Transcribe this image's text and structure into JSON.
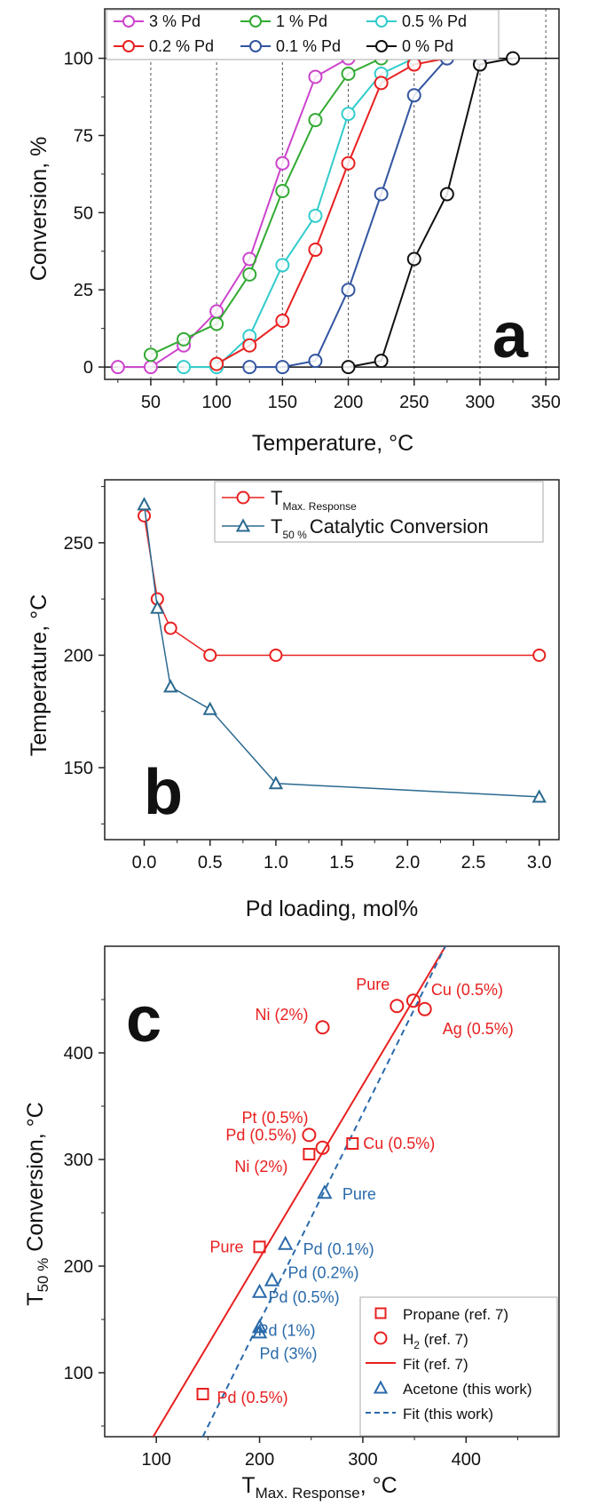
{
  "chart_data": [
    {
      "panel": "a",
      "type": "line",
      "xlabel": "Temperature, °C",
      "ylabel": "Conversion, %",
      "xlim": [
        15,
        360
      ],
      "ylim": [
        -4,
        116
      ],
      "xticks": [
        50,
        100,
        150,
        200,
        250,
        300,
        350
      ],
      "yticks": [
        0,
        25,
        50,
        75,
        100
      ],
      "grid": "vertical dashed",
      "legend_position": "top",
      "series": [
        {
          "name": "3 % Pd",
          "color": "#cc44cc",
          "x": [
            25,
            50,
            75,
            100,
            125,
            150,
            175,
            200
          ],
          "y": [
            0,
            0,
            7,
            18,
            35,
            66,
            94,
            100
          ]
        },
        {
          "name": "1 % Pd",
          "color": "#33aa33",
          "x": [
            50,
            75,
            100,
            125,
            150,
            175,
            200,
            225,
            250
          ],
          "y": [
            4,
            9,
            14,
            30,
            57,
            80,
            95,
            100,
            100
          ]
        },
        {
          "name": "0.5 % Pd",
          "color": "#33cccc",
          "x": [
            75,
            100,
            125,
            150,
            175,
            200,
            225,
            250
          ],
          "y": [
            0,
            0,
            10,
            33,
            49,
            82,
            95,
            100
          ]
        },
        {
          "name": "0.2 % Pd",
          "color": "#e82020",
          "x": [
            100,
            125,
            150,
            175,
            200,
            225,
            250,
            275
          ],
          "y": [
            1,
            7,
            15,
            38,
            66,
            92,
            98,
            100
          ]
        },
        {
          "name": "0.1 % Pd",
          "color": "#3355a0",
          "x": [
            125,
            150,
            175,
            200,
            225,
            250,
            275,
            300
          ],
          "y": [
            0,
            0,
            2,
            25,
            56,
            88,
            100,
            100
          ]
        },
        {
          "name": "0 % Pd",
          "color": "#111111",
          "x": [
            200,
            225,
            250,
            275,
            300,
            325
          ],
          "y": [
            0,
            2,
            35,
            56,
            98,
            100
          ]
        }
      ]
    },
    {
      "panel": "b",
      "type": "line",
      "xlabel": "Pd loading, mol%",
      "ylabel": "Temperature, °C",
      "xlim": [
        -0.3,
        3.15
      ],
      "ylim": [
        118,
        278
      ],
      "xticks": [
        0.0,
        0.5,
        1.0,
        1.5,
        2.0,
        2.5,
        3.0
      ],
      "yticks": [
        150,
        200,
        250
      ],
      "legend_position": "top-right",
      "series": [
        {
          "name": "T",
          "name_sub": "Max. Response",
          "name_suffix": "",
          "color": "#e82020",
          "marker": "circle",
          "x": [
            0,
            0.1,
            0.2,
            0.5,
            1.0,
            3.0
          ],
          "y": [
            262,
            225,
            212,
            200,
            200,
            200
          ]
        },
        {
          "name": "T",
          "name_sub": "50 %",
          "name_suffix": "Catalytic Conversion",
          "color": "#2a6a8f",
          "marker": "triangle",
          "x": [
            0,
            0.1,
            0.2,
            0.5,
            1.0,
            3.0
          ],
          "y": [
            267,
            221,
            186,
            176,
            143,
            137
          ]
        }
      ]
    },
    {
      "panel": "c",
      "type": "scatter",
      "xlabel": "T",
      "xlabel_sub": "Max. Response",
      "xlabel_suffix": ", °C",
      "ylabel": "T",
      "ylabel_sub": "50 %",
      "ylabel_suffix": " Conversion, °C",
      "xlim": [
        50,
        490
      ],
      "ylim": [
        40,
        500
      ],
      "xticks": [
        100,
        200,
        300,
        400
      ],
      "yticks": [
        100,
        200,
        300,
        400
      ],
      "legend_position": "bottom-right",
      "legend": [
        {
          "label": "Propane (ref. 7)",
          "sub": "",
          "suffix": "",
          "kind": "square",
          "color": "#e82020"
        },
        {
          "label": "H",
          "sub": "2",
          "suffix": " (ref. 7)",
          "kind": "circle",
          "color": "#e82020"
        },
        {
          "label": "Fit (ref. 7)",
          "sub": "",
          "suffix": "",
          "kind": "solid-line",
          "color": "#e82020"
        },
        {
          "label": "Acetone (this work)",
          "sub": "",
          "suffix": "",
          "kind": "triangle",
          "color": "#2a6aaa"
        },
        {
          "label": "Fit (this work)",
          "sub": "",
          "suffix": "",
          "kind": "dashed-line",
          "color": "#2a6aaa"
        }
      ],
      "fits": [
        {
          "name": "Fit (ref. 7)",
          "color": "#e82020",
          "style": "solid",
          "points": [
            [
              97,
              40
            ],
            [
              380,
              500
            ]
          ]
        },
        {
          "name": "Fit (this work)",
          "color": "#2a6aaa",
          "style": "dashed",
          "points": [
            [
              145,
              40
            ],
            [
              380,
              500
            ]
          ]
        }
      ],
      "series": [
        {
          "name": "Propane (ref. 7)",
          "marker": "square",
          "color": "#e82020",
          "points": [
            {
              "x": 145,
              "y": 80,
              "label": "Pd (0.5%)"
            },
            {
              "x": 200,
              "y": 218,
              "label": "Pure"
            },
            {
              "x": 248,
              "y": 305,
              "label": "Ni (2%)"
            },
            {
              "x": 290,
              "y": 315,
              "label": "Cu (0.5%)"
            }
          ]
        },
        {
          "name": "H₂ (ref. 7)",
          "marker": "circle",
          "color": "#e82020",
          "points": [
            {
              "x": 248,
              "y": 323,
              "label": "Pd (0.5%)"
            },
            {
              "x": 261,
              "y": 311,
              "label": "Pt (0.5%)"
            },
            {
              "x": 261,
              "y": 424,
              "label": "Ni (2%)"
            },
            {
              "x": 333,
              "y": 444,
              "label": "Pure"
            },
            {
              "x": 349,
              "y": 449,
              "label": "Cu (0.5%)"
            },
            {
              "x": 360,
              "y": 441,
              "label": "Ag (0.5%)"
            }
          ]
        },
        {
          "name": "Acetone (this work)",
          "marker": "triangle",
          "color": "#2a6aaa",
          "points": [
            {
              "x": 263,
              "y": 269,
              "label": "Pure"
            },
            {
              "x": 225,
              "y": 221,
              "label": "Pd (0.1%)"
            },
            {
              "x": 212,
              "y": 187,
              "label": "Pd (0.2%)"
            },
            {
              "x": 200,
              "y": 176,
              "label": "Pd (0.5%)"
            },
            {
              "x": 200,
              "y": 143,
              "label": "Pd (1%)"
            },
            {
              "x": 200,
              "y": 138,
              "label": "Pd (3%)"
            }
          ]
        }
      ]
    }
  ],
  "panel_letters": {
    "a": "a",
    "b": "b",
    "c": "c"
  }
}
